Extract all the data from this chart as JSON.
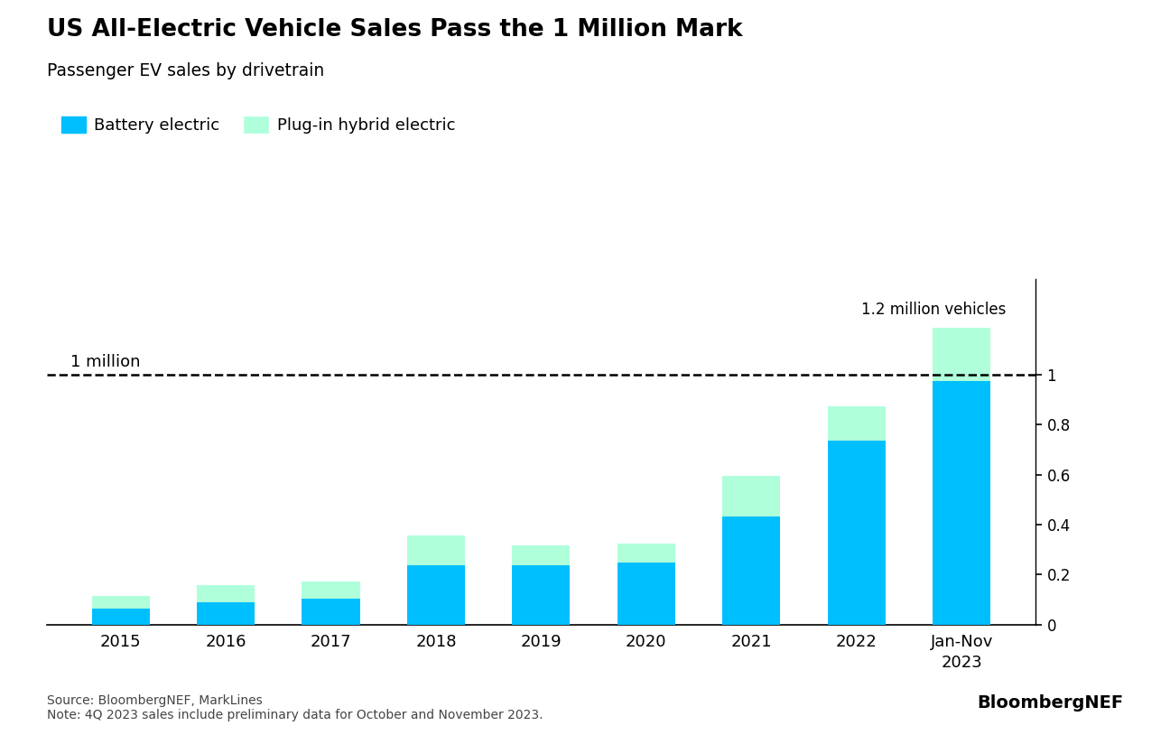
{
  "title": "US All-Electric Vehicle Sales Pass the 1 Million Mark",
  "subtitle": "Passenger EV sales by drivetrain",
  "categories": [
    "2015",
    "2016",
    "2017",
    "2018",
    "2019",
    "2020",
    "2021",
    "2022",
    "Jan-Nov\n2023"
  ],
  "battery_electric": [
    0.066,
    0.09,
    0.103,
    0.237,
    0.238,
    0.248,
    0.432,
    0.735,
    0.975
  ],
  "plugin_hybrid": [
    0.048,
    0.067,
    0.07,
    0.118,
    0.078,
    0.078,
    0.162,
    0.138,
    0.21
  ],
  "color_battery": "#00BFFF",
  "color_plugin": "#AFFFDB",
  "million_line": 1.0,
  "million_label": "1 million",
  "annotation_text": "1.2 million vehicles",
  "ylim": [
    0,
    1.38
  ],
  "yticks": [
    0,
    0.2,
    0.4,
    0.6,
    0.8,
    1.0
  ],
  "source_text": "Source: BloombergNEF, MarkLines\nNote: 4Q 2023 sales include preliminary data for October and November 2023.",
  "bloomberg_nef_text": "BloombergNEF",
  "legend_battery": "Battery electric",
  "legend_plugin": "Plug-in hybrid electric",
  "background_color": "#FFFFFF",
  "bar_width": 0.55
}
